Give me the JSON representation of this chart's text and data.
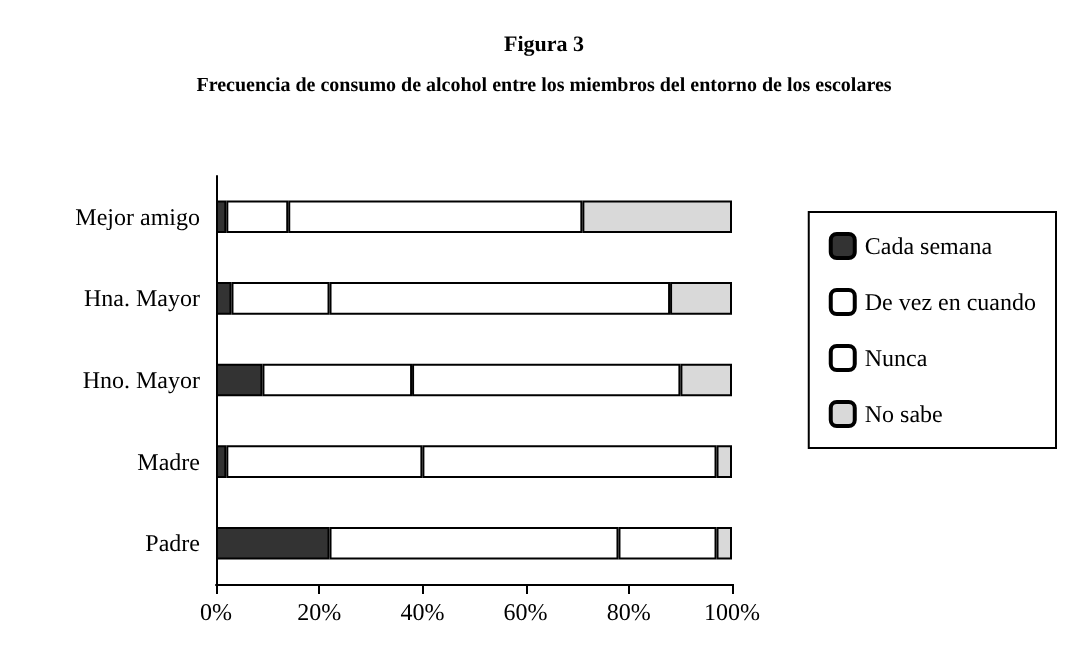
{
  "chart_data": {
    "type": "bar",
    "orientation": "horizontal",
    "stacked": true,
    "title": "Figura 3",
    "subtitle": "Frecuencia de consumo de alcohol entre los miembros del entorno de los escolares",
    "categories": [
      "Mejor amigo",
      "Hna. Mayor",
      "Hno. Mayor",
      "Madre",
      "Padre"
    ],
    "series": [
      {
        "name": "Cada semana",
        "color": "#333333",
        "values": [
          2,
          3,
          9,
          2,
          22
        ]
      },
      {
        "name": "De vez en cuando",
        "color": "#ffffff",
        "values": [
          12,
          19,
          29,
          38,
          56
        ]
      },
      {
        "name": "Nunca",
        "color": "#ffffff",
        "values": [
          57,
          66,
          52,
          57,
          19
        ]
      },
      {
        "name": "No sabe",
        "color": "#d9d9d9",
        "values": [
          29,
          12,
          10,
          3,
          3
        ]
      }
    ],
    "xlim": [
      0,
      100
    ],
    "xticks": [
      {
        "value": 0,
        "label": "0%"
      },
      {
        "value": 20,
        "label": "20%"
      },
      {
        "value": 40,
        "label": "40%"
      },
      {
        "value": 60,
        "label": "60%"
      },
      {
        "value": 80,
        "label": "80%"
      },
      {
        "value": 100,
        "label": "100%"
      }
    ],
    "grid": false,
    "legend": "right"
  }
}
